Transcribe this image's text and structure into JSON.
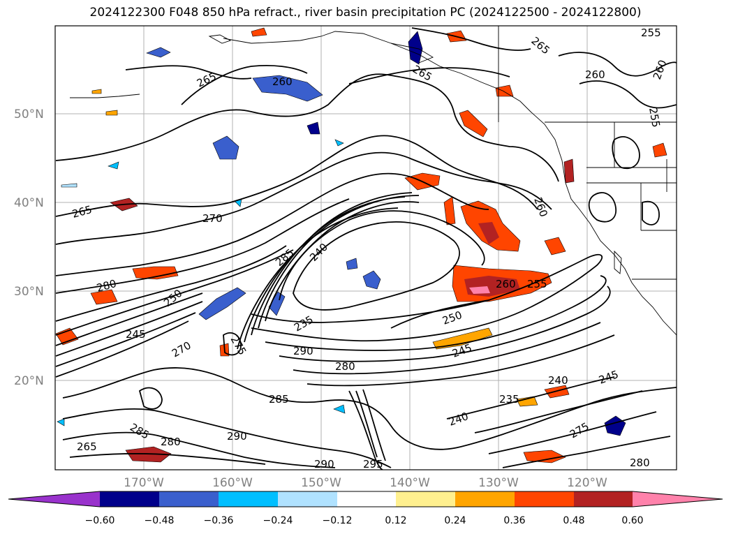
{
  "title": "2024122300 F048 850 hPa refract., river basin precipitation PC (2024122500 - 2024122800)",
  "map": {
    "lat_ticks": [
      "50°N",
      "40°N",
      "30°N",
      "20°N"
    ],
    "lon_ticks": [
      "170°W",
      "160°W",
      "150°W",
      "140°W",
      "130°W",
      "120°W"
    ],
    "grid": true,
    "contour_color": "#000000",
    "contour_labels": [
      "255",
      "265",
      "260",
      "265",
      "265",
      "260",
      "260",
      "255",
      "265",
      "270",
      "260",
      "280",
      "285",
      "240",
      "235",
      "260",
      "255",
      "250",
      "250",
      "245",
      "245",
      "290",
      "285",
      "280",
      "240",
      "245",
      "235",
      "240",
      "275",
      "290",
      "280",
      "290",
      "295",
      "285",
      "280",
      "275",
      "270",
      "265"
    ]
  },
  "colorbar": {
    "colors": [
      "#9932cc",
      "#00008b",
      "#3a5fcd",
      "#00bfff",
      "#b0e2ff",
      "#ffffff",
      "#fff08f",
      "#ffa500",
      "#ff4500",
      "#b22222",
      "#ff82ab"
    ],
    "ticks": [
      "−0.60",
      "−0.48",
      "−0.36",
      "−0.24",
      "−0.12",
      "0.12",
      "0.24",
      "0.36",
      "0.48",
      "0.60"
    ]
  }
}
